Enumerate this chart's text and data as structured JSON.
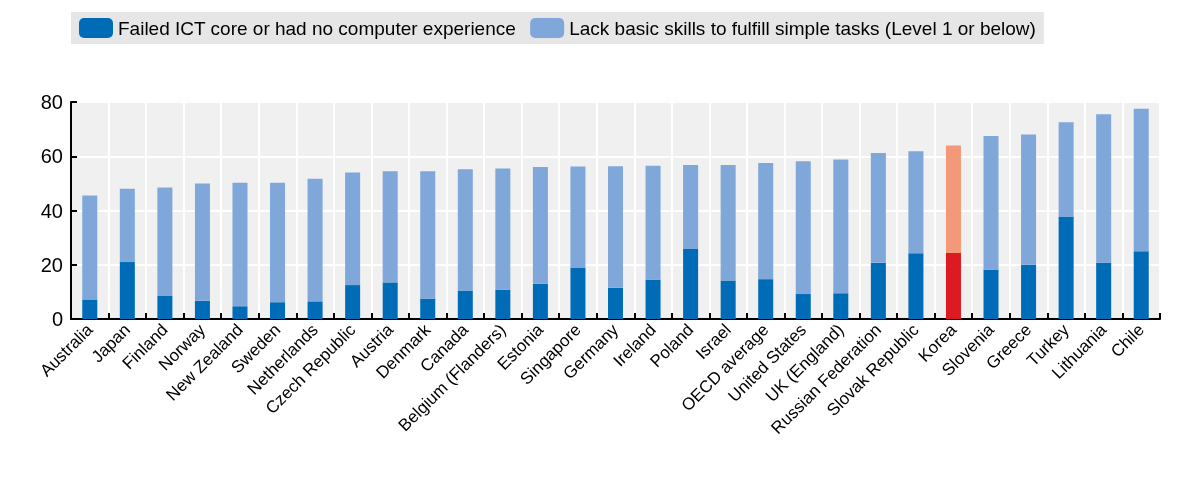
{
  "chart_data": {
    "type": "bar",
    "stacked": true,
    "legend": "top",
    "grid": true,
    "categories": [
      "Australia",
      "Japan",
      "Finland",
      "Norway",
      "New Zealand",
      "Sweden",
      "Netherlands",
      "Czech Republic",
      "Austria",
      "Denmark",
      "Canada",
      "Belgium (Flanders)",
      "Estonia",
      "Singapore",
      "Germany",
      "Ireland",
      "Poland",
      "Israel",
      "OECD average",
      "United States",
      "UK (England)",
      "Russian Federation",
      "Slovak Republic",
      "Korea",
      "Slovenia",
      "Greece",
      "Turkey",
      "Lithuania",
      "Chile"
    ],
    "series": [
      {
        "name": "Failed ICT core or had no computer experience",
        "color": "#006bb6",
        "colors": [
          "#006bb6",
          "#006bb6",
          "#006bb6",
          "#006bb6",
          "#006bb6",
          "#006bb6",
          "#006bb6",
          "#006bb6",
          "#006bb6",
          "#006bb6",
          "#006bb6",
          "#006bb6",
          "#006bb6",
          "#006bb6",
          "#006bb6",
          "#006bb6",
          "#006bb6",
          "#006bb6",
          "#006bb6",
          "#006bb6",
          "#006bb6",
          "#006bb6",
          "#006bb6",
          "#dc1a21",
          "#006bb6",
          "#006bb6",
          "#006bb6",
          "#006bb6",
          "#006bb6"
        ],
        "values": [
          7.2,
          21,
          8.5,
          6.7,
          4.7,
          6.2,
          6.5,
          12.5,
          13.5,
          7.5,
          10.5,
          10.8,
          13,
          18.8,
          11.5,
          14.5,
          25.8,
          14.2,
          14.7,
          9.2,
          9.5,
          20.7,
          24.2,
          24.3,
          18.2,
          20,
          37.8,
          20.8,
          25
        ]
      },
      {
        "name": "Lack basic skills to fulfill simple tasks (Level 1 or below)",
        "color": "#7fa7d9",
        "colors": [
          "#7fa7d9",
          "#7fa7d9",
          "#7fa7d9",
          "#7fa7d9",
          "#7fa7d9",
          "#7fa7d9",
          "#7fa7d9",
          "#7fa7d9",
          "#7fa7d9",
          "#7fa7d9",
          "#7fa7d9",
          "#7fa7d9",
          "#7fa7d9",
          "#7fa7d9",
          "#7fa7d9",
          "#7fa7d9",
          "#7fa7d9",
          "#7fa7d9",
          "#7fa7d9",
          "#7fa7d9",
          "#7fa7d9",
          "#7fa7d9",
          "#7fa7d9",
          "#f4987a",
          "#7fa7d9",
          "#7fa7d9",
          "#7fa7d9",
          "#7fa7d9",
          "#7fa7d9"
        ],
        "values": [
          38.3,
          27,
          40,
          43.3,
          45.5,
          44,
          45.2,
          41.5,
          41,
          47,
          44.7,
          44.7,
          43,
          37.4,
          44.8,
          42,
          31,
          42.6,
          42.8,
          49,
          49.3,
          40.5,
          37.6,
          39.7,
          49.3,
          48,
          34.7,
          54.7,
          52.5
        ]
      }
    ],
    "ylim": [
      0,
      80
    ],
    "yticks": [
      0,
      20,
      40,
      60,
      80
    ]
  }
}
